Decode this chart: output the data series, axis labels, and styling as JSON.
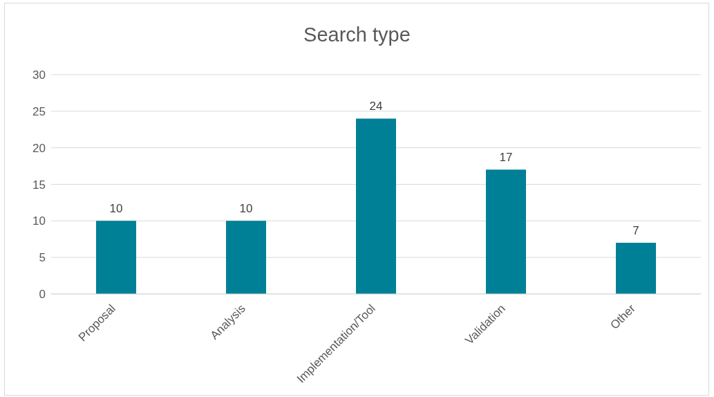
{
  "chart_data": {
    "type": "bar",
    "title": "Search type",
    "categories": [
      "Proposal",
      "Analysis",
      "Implementation/Tool",
      "Validation",
      "Other"
    ],
    "values": [
      10,
      10,
      24,
      17,
      7
    ],
    "color": "#008096",
    "ylim": [
      0,
      30
    ],
    "yticks": [
      0,
      5,
      10,
      15,
      20,
      25,
      30
    ],
    "grid": "y",
    "data_labels": true
  }
}
